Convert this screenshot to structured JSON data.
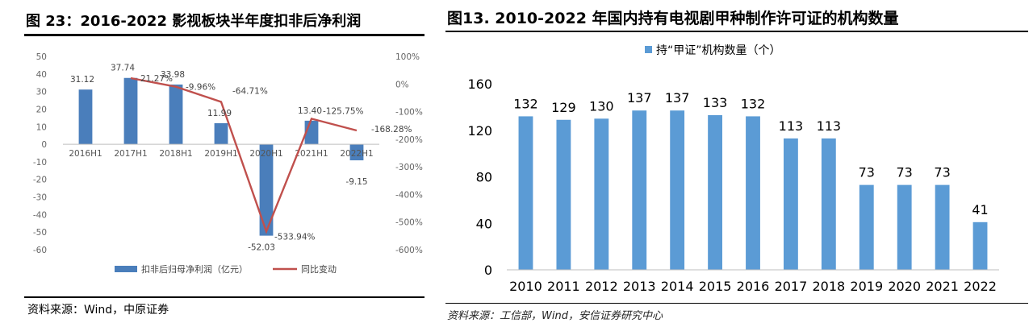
{
  "left": {
    "title": "图 23：2016-2022 影视板块半年度扣非后净利润",
    "source": "资料来源：Wind，中原证券",
    "chart_data": {
      "type": "bar",
      "categories": [
        "2016H1",
        "2017H1",
        "2018H1",
        "2019H1",
        "2020H1",
        "2021H1",
        "2022H1"
      ],
      "series": [
        {
          "name": "扣非后归母净利润（亿元）",
          "type": "bar",
          "axis": "left",
          "values": [
            31.12,
            37.74,
            33.98,
            11.99,
            -52.03,
            13.4,
            -9.15
          ],
          "labels": [
            "31.12",
            "37.74",
            "33.98",
            "11.99",
            "-52.03",
            "13.40",
            "-9.15"
          ]
        },
        {
          "name": "同比变动",
          "type": "line",
          "axis": "right",
          "values": [
            null,
            21.27,
            -9.96,
            -64.71,
            -533.94,
            -125.75,
            -168.28
          ],
          "labels": [
            null,
            "21.27%",
            "-9.96%",
            "-64.71%",
            "-533.94%",
            "-125.75%",
            "-168.28%"
          ]
        }
      ],
      "ylim": [
        -60,
        50
      ],
      "y_ticks": [
        "50",
        "40",
        "30",
        "20",
        "10",
        "0",
        "-10",
        "-20",
        "-30",
        "-40",
        "-50",
        "-60"
      ],
      "y2lim": [
        -600,
        100
      ],
      "y2_ticks": [
        "100%",
        "0%",
        "-100%",
        "-200%",
        "-300%",
        "-400%",
        "-500%",
        "-600%"
      ],
      "legend": "bottom",
      "colors": {
        "bar": "#4a7ebb",
        "line": "#c0504d"
      }
    }
  },
  "right": {
    "title": "图13. 2010-2022 年国内持有电视剧甲种制作许可证的机构数量",
    "source": "资料来源：工信部，Wind，安信证券研究中心",
    "chart_data": {
      "type": "bar",
      "categories": [
        "2010",
        "2011",
        "2012",
        "2013",
        "2014",
        "2015",
        "2016",
        "2017",
        "2018",
        "2019",
        "2020",
        "2021",
        "2022"
      ],
      "series": [
        {
          "name": "持“甲证”机构数量（个）",
          "values": [
            132,
            129,
            130,
            137,
            137,
            133,
            132,
            113,
            113,
            73,
            73,
            73,
            41
          ]
        }
      ],
      "ylim": [
        0,
        160
      ],
      "y_ticks": [
        "0",
        "40",
        "80",
        "120",
        "160"
      ],
      "legend": "top",
      "colors": {
        "bar": "#5b9bd5"
      }
    }
  }
}
